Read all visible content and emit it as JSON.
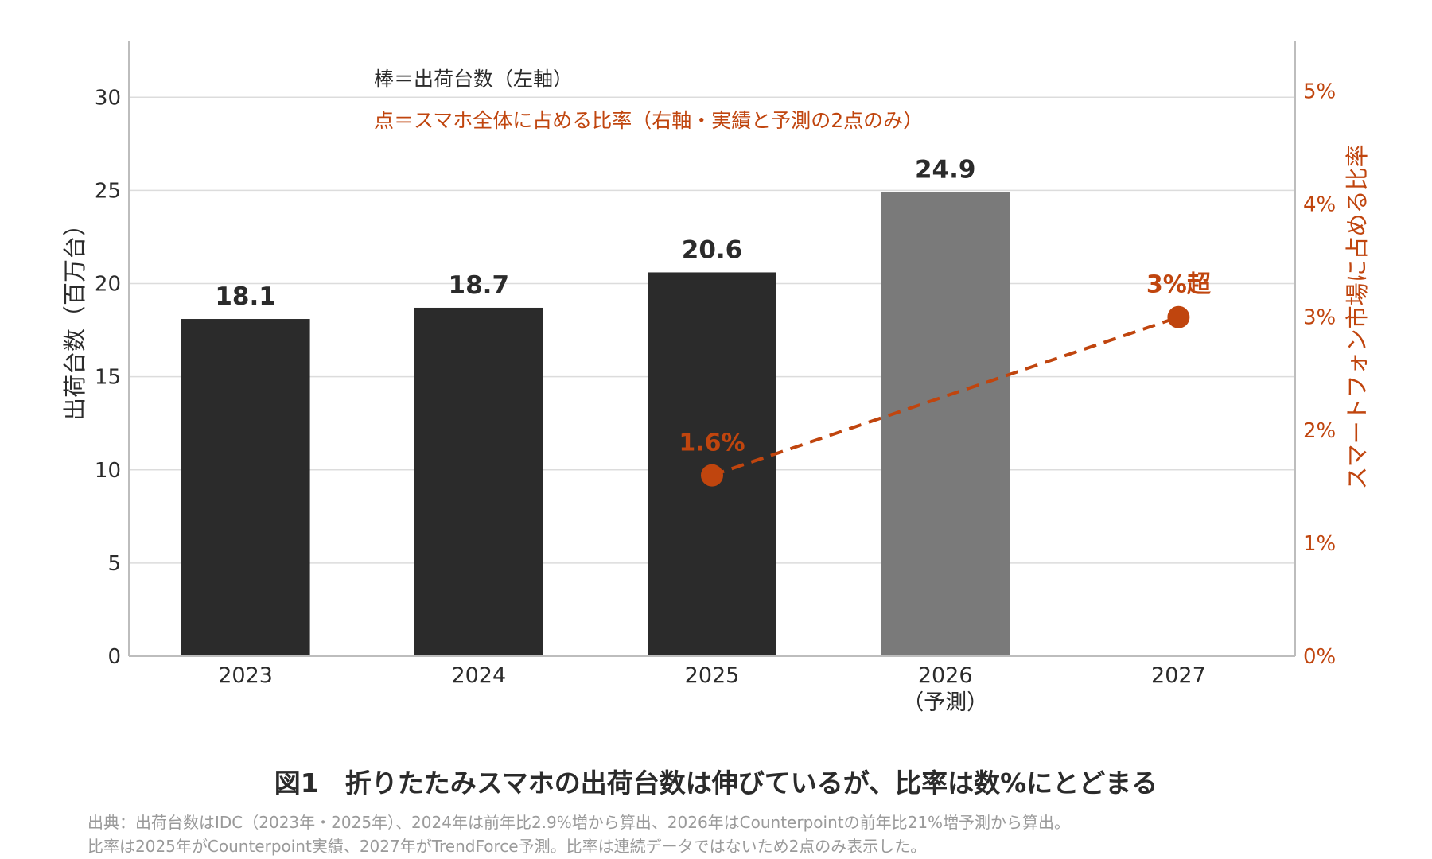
{
  "chart_data": {
    "type": "bar",
    "categories": [
      "2023",
      "2024",
      "2025",
      "2026",
      "2027"
    ],
    "category_sublabels": [
      "",
      "",
      "",
      "（予測）",
      ""
    ],
    "series": [
      {
        "type": "bar",
        "axis": "left",
        "values": [
          18.1,
          18.7,
          20.6,
          24.9,
          null
        ],
        "value_labels": [
          "18.1",
          "18.7",
          "20.6",
          "24.9",
          ""
        ],
        "colors": [
          "#2b2b2b",
          "#2b2b2b",
          "#2b2b2b",
          "#7a7a7a",
          null
        ]
      },
      {
        "type": "line",
        "style": "dashed",
        "axis": "right",
        "points": [
          {
            "x": "2025",
            "y": 1.6,
            "label": "1.6%"
          },
          {
            "x": "2027",
            "y": 3.0,
            "label": "3%超"
          }
        ],
        "color": "#c0450e"
      }
    ],
    "ylabel": "出荷台数（百万台）",
    "y2label": "スマートフォン市場に占める比率",
    "ylim": [
      0,
      33
    ],
    "y2lim": [
      0,
      5.44
    ],
    "yticks": [
      0,
      5,
      10,
      15,
      20,
      25,
      30
    ],
    "ytick_labels": [
      "0",
      "5",
      "10",
      "15",
      "20",
      "25",
      "30"
    ],
    "y2ticks": [
      0,
      1,
      2,
      3,
      4,
      5
    ],
    "y2tick_labels": [
      "0%",
      "1%",
      "2%",
      "3%",
      "4%",
      "5%"
    ],
    "grid": true,
    "annotations": [
      {
        "text": "棒＝出荷台数（左軸）",
        "color": "#2b2b2b"
      },
      {
        "text": "点＝スマホ全体に占める比率（右軸・実績と予測の2点のみ）",
        "color": "#c0450e"
      }
    ]
  },
  "caption": "図1　折りたたみスマホの出荷台数は伸びているが、比率は数%にとどまる",
  "source": [
    "出典：出荷台数はIDC（2023年・2025年）、2024年は前年比2.9%増から算出、2026年はCounterpointの前年比21%増予測から算出。",
    "比率は2025年がCounterpoint実績、2027年がTrendForce予測。比率は連続データではないため2点のみ表示した。"
  ],
  "colors": {
    "accent": "#c0450e",
    "bar": "#2b2b2b",
    "bar_forecast": "#7a7a7a",
    "text": "#2b2b2b"
  }
}
